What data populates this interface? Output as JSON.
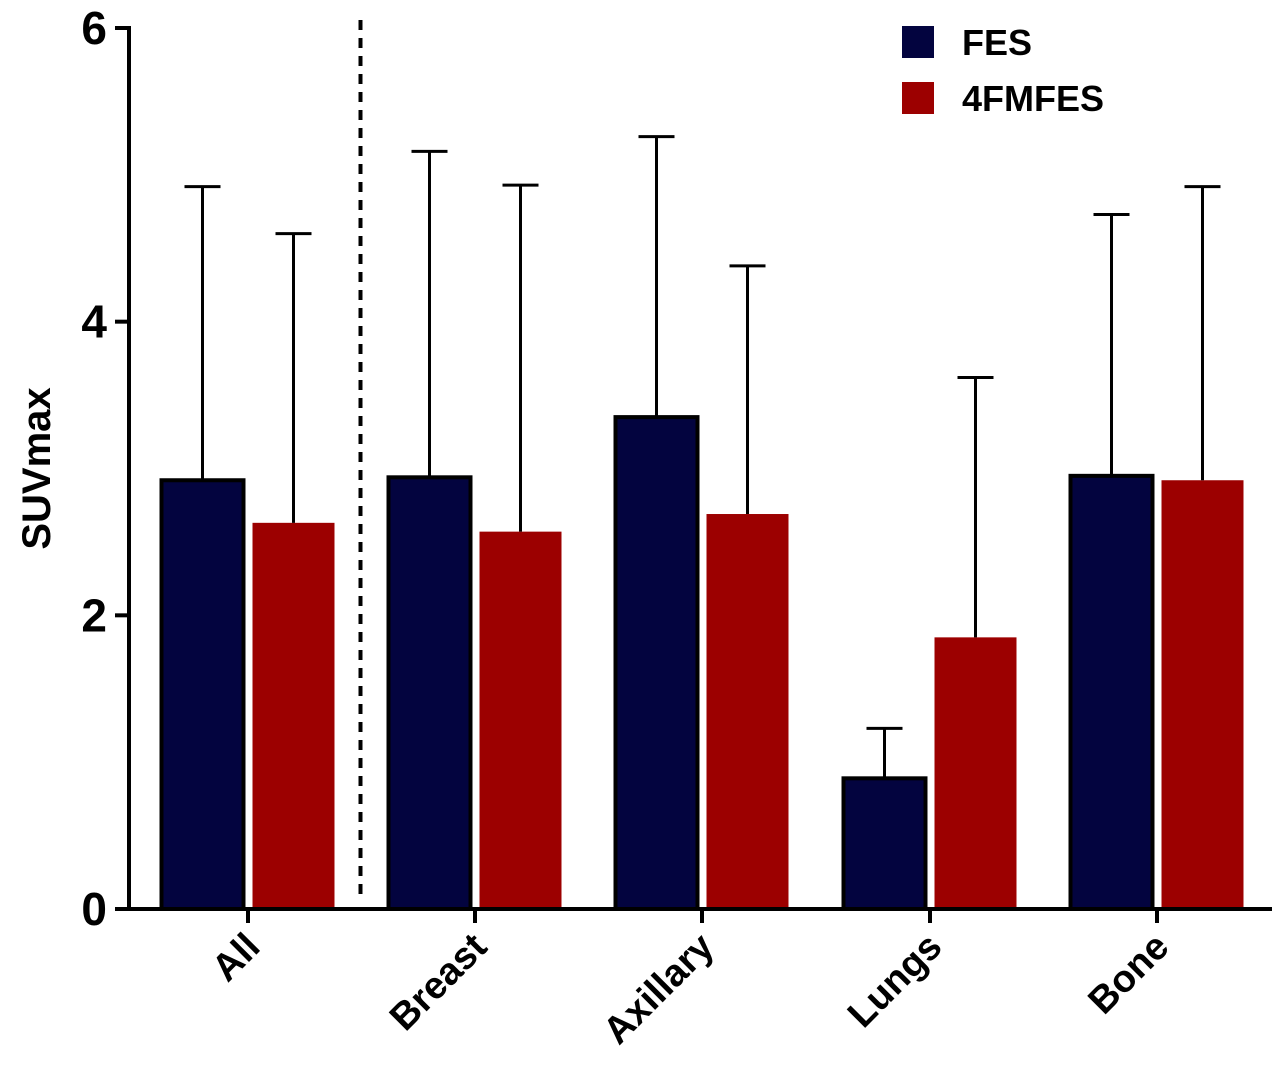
{
  "chart_data": {
    "type": "bar",
    "title": "",
    "xlabel": "",
    "ylabel": "SUVmax",
    "ylim": [
      0,
      6
    ],
    "yticks": [
      0,
      2,
      4,
      6
    ],
    "categories": [
      "All",
      "Breast",
      "Axillary",
      "Lungs",
      "Bone"
    ],
    "series": [
      {
        "name": "FES",
        "color": "#03043f",
        "values": [
          2.92,
          2.94,
          3.35,
          0.89,
          2.95
        ],
        "error_upper": [
          4.92,
          5.16,
          5.26,
          1.23,
          4.73
        ]
      },
      {
        "name": "4FMFES",
        "color": "#9c0000",
        "values": [
          2.63,
          2.57,
          2.69,
          1.85,
          2.92
        ],
        "error_upper": [
          4.6,
          4.93,
          4.38,
          3.62,
          4.92
        ]
      }
    ],
    "separator_after_category": "All",
    "grid": false,
    "legend_position": "top-right"
  }
}
